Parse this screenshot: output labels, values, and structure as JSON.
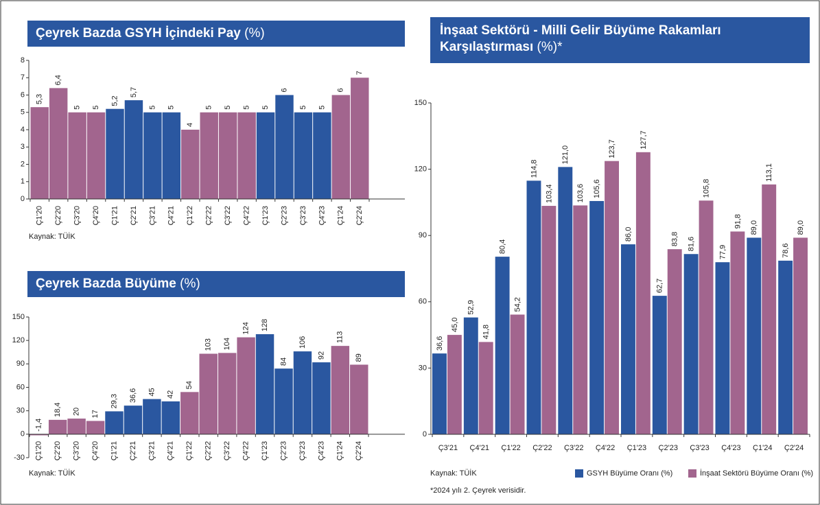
{
  "chart_data": [
    {
      "type": "bar",
      "title": "Çeyrek Bazda GSYH İçindeki Pay",
      "title_unit": "(%)",
      "categories": [
        "Ç1'20",
        "Ç2'20",
        "Ç3'20",
        "Ç4'20",
        "Ç1'21",
        "Ç2'21",
        "Ç3'21",
        "Ç4'21",
        "Ç1'22",
        "Ç2'22",
        "Ç3'22",
        "Ç4'22",
        "Ç1'23",
        "Ç2'23",
        "Ç3'23",
        "Ç4'23",
        "Ç1'24",
        "Ç2'24"
      ],
      "values": [
        5.3,
        6.4,
        5,
        5,
        5.2,
        5.7,
        5,
        5,
        4,
        5,
        5,
        5,
        5,
        6,
        5,
        5,
        6,
        7
      ],
      "value_labels": [
        "5,3",
        "6,4",
        "5",
        "5",
        "5,2",
        "5,7",
        "5",
        "5",
        "4",
        "5",
        "5",
        "5",
        "5",
        "6",
        "5",
        "5",
        "6",
        "7"
      ],
      "colors": [
        "#a2658e",
        "#a2658e",
        "#a2658e",
        "#a2658e",
        "#2a57a0",
        "#2a57a0",
        "#2a57a0",
        "#2a57a0",
        "#a2658e",
        "#a2658e",
        "#a2658e",
        "#a2658e",
        "#2a57a0",
        "#2a57a0",
        "#2a57a0",
        "#2a57a0",
        "#a2658e",
        "#a2658e"
      ],
      "ylim": [
        0,
        8
      ],
      "yticks": [
        0,
        1,
        2,
        3,
        4,
        5,
        6,
        7,
        8
      ],
      "source": "Kaynak: TÜİK"
    },
    {
      "type": "bar",
      "title": "Çeyrek Bazda Büyüme",
      "title_unit": "(%)",
      "categories": [
        "Ç1'20",
        "Ç2'20",
        "Ç3'20",
        "Ç4'20",
        "Ç1'21",
        "Ç2'21",
        "Ç3'21",
        "Ç4'21",
        "Ç1'22",
        "Ç2'22",
        "Ç3'22",
        "Ç4'22",
        "Ç1'23",
        "Ç2'23",
        "Ç3'23",
        "Ç4'23",
        "Ç1'24",
        "Ç2'24"
      ],
      "values": [
        -1.4,
        18.4,
        20,
        17,
        29.3,
        36.6,
        45,
        42,
        54,
        103,
        104,
        124,
        128,
        84,
        106,
        92,
        113,
        89
      ],
      "value_labels": [
        "-1,4",
        "18,4",
        "20",
        "17",
        "29,3",
        "36,6",
        "45",
        "42",
        "54",
        "103",
        "104",
        "124",
        "128",
        "84",
        "106",
        "92",
        "113",
        "89"
      ],
      "colors": [
        "#a2658e",
        "#a2658e",
        "#a2658e",
        "#a2658e",
        "#2a57a0",
        "#2a57a0",
        "#2a57a0",
        "#2a57a0",
        "#a2658e",
        "#a2658e",
        "#a2658e",
        "#a2658e",
        "#2a57a0",
        "#2a57a0",
        "#2a57a0",
        "#2a57a0",
        "#a2658e",
        "#a2658e"
      ],
      "ylim": [
        -30,
        150
      ],
      "yticks": [
        -30,
        0,
        30,
        60,
        90,
        120,
        150
      ],
      "source": "Kaynak: TÜİK"
    },
    {
      "type": "grouped-bar",
      "title": "İnşaat Sektörü - Milli Gelir Büyüme Rakamları Karşılaştırması",
      "title_unit": "(%)*",
      "categories": [
        "Ç3'21",
        "Ç4'21",
        "Ç1'22",
        "Ç2'22",
        "Ç3'22",
        "Ç4'22",
        "Ç1'23",
        "Ç2'23",
        "Ç3'23",
        "Ç4'23",
        "Ç1'24",
        "Ç2'24"
      ],
      "series": [
        {
          "name": "GSYH Büyüme Oranı (%)",
          "color": "#2a57a0",
          "values": [
            36.6,
            52.9,
            80.4,
            114.8,
            121.0,
            105.6,
            86.0,
            62.7,
            81.6,
            77.9,
            89.0,
            78.6
          ],
          "value_labels": [
            "36,6",
            "52,9",
            "80,4",
            "114,8",
            "121,0",
            "105,6",
            "86,0",
            "62,7",
            "81,6",
            "77,9",
            "89,0",
            "78,6"
          ]
        },
        {
          "name": "İnşaat Sektörü Büyüme Oranı (%)",
          "color": "#a2658e",
          "values": [
            45.0,
            41.8,
            54.2,
            103.4,
            103.6,
            123.7,
            127.7,
            83.8,
            105.8,
            91.8,
            113.1,
            89.0
          ],
          "value_labels": [
            "45,0",
            "41,8",
            "54,2",
            "103,4",
            "103,6",
            "123,7",
            "127,7",
            "83,8",
            "105,8",
            "91,8",
            "113,1",
            "89,0"
          ]
        }
      ],
      "ylim": [
        0,
        150
      ],
      "yticks": [
        0,
        30,
        60,
        90,
        120,
        150
      ],
      "legend": "bottom",
      "source": "Kaynak: TÜİK",
      "note": "*2024 yılı 2. Çeyrek verisidir."
    }
  ]
}
